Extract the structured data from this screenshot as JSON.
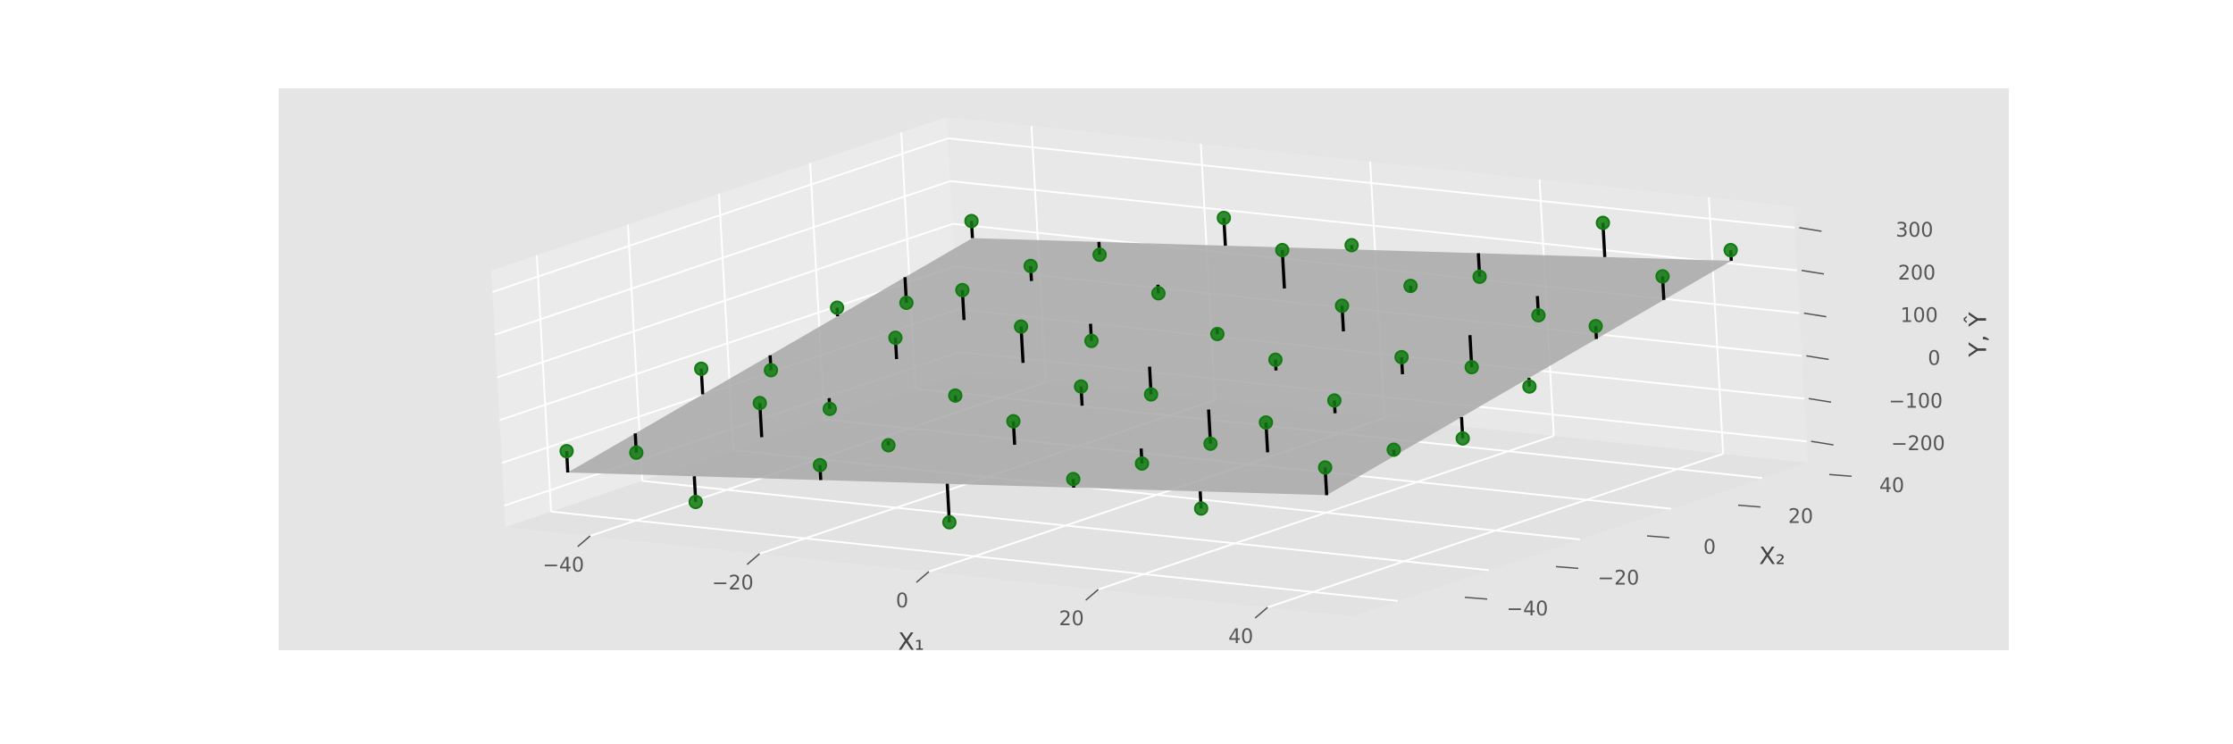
{
  "chart_data": {
    "type": "scatter3d",
    "x_label": "X₁",
    "y_label": "X₂",
    "z_label": "Y, Ŷ",
    "xlim": [
      -50,
      50
    ],
    "ylim": [
      -50,
      50
    ],
    "zlim": [
      -250,
      350
    ],
    "xticks": [
      {
        "value": -40,
        "label": "−40"
      },
      {
        "value": -20,
        "label": "−20"
      },
      0,
      20,
      40
    ],
    "yticks": [
      {
        "value": -40,
        "label": "−40"
      },
      {
        "value": -20,
        "label": "−20"
      },
      0,
      20,
      40
    ],
    "zticks": [
      {
        "value": -200,
        "label": "−200"
      },
      {
        "value": -100,
        "label": "−100"
      },
      0,
      100,
      200,
      300
    ],
    "grid": true,
    "point_color": "#117a11",
    "stem_color": "#000000",
    "plane_color": "#a8a8a8",
    "x1": [
      -45,
      -30,
      -15,
      0,
      15,
      30,
      45,
      -45,
      -30,
      -15,
      0,
      15,
      30,
      45,
      -45,
      -30,
      -15,
      0,
      15,
      30,
      45,
      -45,
      -30,
      -15,
      0,
      15,
      30,
      45,
      -45,
      -30,
      -15,
      0,
      15,
      30,
      45,
      -45,
      -30,
      -15,
      0,
      15,
      30,
      45,
      -45,
      -30,
      -15,
      0,
      15,
      30,
      45
    ],
    "x2": [
      45,
      45,
      45,
      45,
      45,
      45,
      45,
      30,
      30,
      30,
      30,
      30,
      30,
      30,
      15,
      15,
      15,
      15,
      15,
      15,
      15,
      0,
      0,
      0,
      0,
      0,
      0,
      0,
      -15,
      -15,
      -15,
      -15,
      -15,
      -15,
      -15,
      -30,
      -30,
      -30,
      -30,
      -30,
      -30,
      -30,
      -45,
      -45,
      -45,
      -45,
      -45,
      -45,
      -45
    ],
    "y": [
      135,
      87.5,
      205,
      172.5,
      130,
      287.5,
      255,
      -2.5,
      115,
      82.5,
      215,
      162.5,
      125,
      247.5,
      40,
      112.5,
      25,
      72.5,
      170,
      57.5,
      185,
      -52.5,
      55,
      112.5,
      -15,
      97.5,
      135,
      97.5,
      5,
      -57.5,
      5,
      57.5,
      -45,
      87.5,
      30,
      -137.5,
      10,
      -57.5,
      30,
      -37.5,
      90,
      57.5,
      -80,
      -167.5,
      -50,
      -152.5,
      -20,
      -57.5,
      70
    ],
    "yhat": [
      95,
      117.5,
      140,
      162.5,
      185,
      207.5,
      230,
      57.5,
      80,
      102.5,
      125,
      147.5,
      170,
      192.5,
      20,
      42.5,
      65,
      87.5,
      110,
      132.5,
      155,
      -17.5,
      5,
      27.5,
      50,
      72.5,
      95,
      117.5,
      -55,
      -32.5,
      -10,
      12.5,
      35,
      57.5,
      80,
      -92.5,
      -70,
      -47.5,
      -25,
      -2.5,
      20,
      42.5,
      -130,
      -107.5,
      -85,
      -62.5,
      -40,
      -17.5,
      5
    ]
  }
}
